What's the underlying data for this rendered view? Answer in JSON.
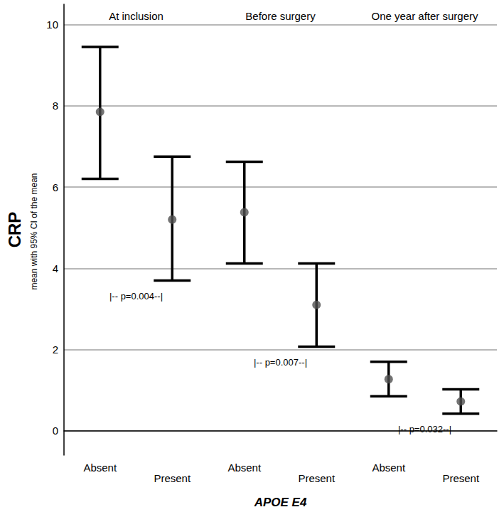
{
  "chart_data": {
    "type": "errorbar",
    "y_label": "CRP",
    "y_sublabel": "mean with 95% CI of the mean",
    "x_label": "APOE E4",
    "groups": [
      "At inclusion",
      "Before surgery",
      "One year after surgery"
    ],
    "categories": [
      "Absent",
      "Present",
      "Absent",
      "Present",
      "Absent",
      "Present"
    ],
    "values": [
      7.85,
      5.2,
      5.38,
      3.1,
      1.27,
      0.72
    ],
    "ci_low": [
      6.2,
      3.7,
      4.12,
      2.07,
      0.85,
      0.42
    ],
    "ci_high": [
      9.45,
      6.75,
      6.62,
      4.12,
      1.7,
      1.02
    ],
    "annotations": [
      "|-- p=0.004--|",
      "|-- p=0.007--|",
      "|-- p=0.032--|"
    ],
    "ylim": [
      -0.6,
      10.5
    ],
    "yticks": [
      0,
      2,
      4,
      6,
      8,
      10
    ],
    "grid": true,
    "color": "#000000",
    "marker": "circle"
  }
}
